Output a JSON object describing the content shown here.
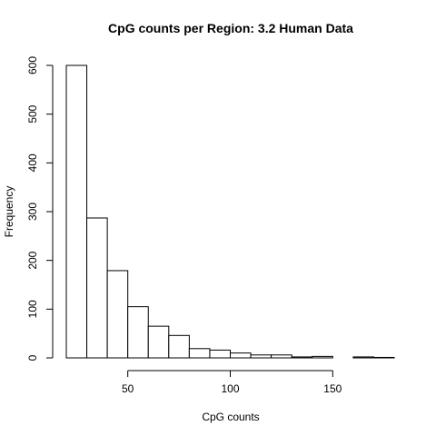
{
  "chart_data": {
    "type": "bar",
    "title": "CpG counts per Region: 3.2 Human Data",
    "xlabel": "CpG counts",
    "ylabel": "Frequency",
    "bin_edges": [
      20,
      30,
      40,
      50,
      60,
      70,
      80,
      90,
      100,
      110,
      120,
      130,
      140,
      150,
      160,
      170,
      180
    ],
    "values": [
      600,
      287,
      179,
      105,
      65,
      46,
      19,
      16,
      10,
      6,
      6,
      2,
      3,
      0,
      2,
      1
    ],
    "xlim": [
      20,
      180
    ],
    "ylim": [
      0,
      600
    ],
    "x_ticks": [
      50,
      100,
      150
    ],
    "y_ticks": [
      0,
      100,
      200,
      300,
      400,
      500,
      600
    ],
    "grid": false,
    "legend": "none"
  }
}
